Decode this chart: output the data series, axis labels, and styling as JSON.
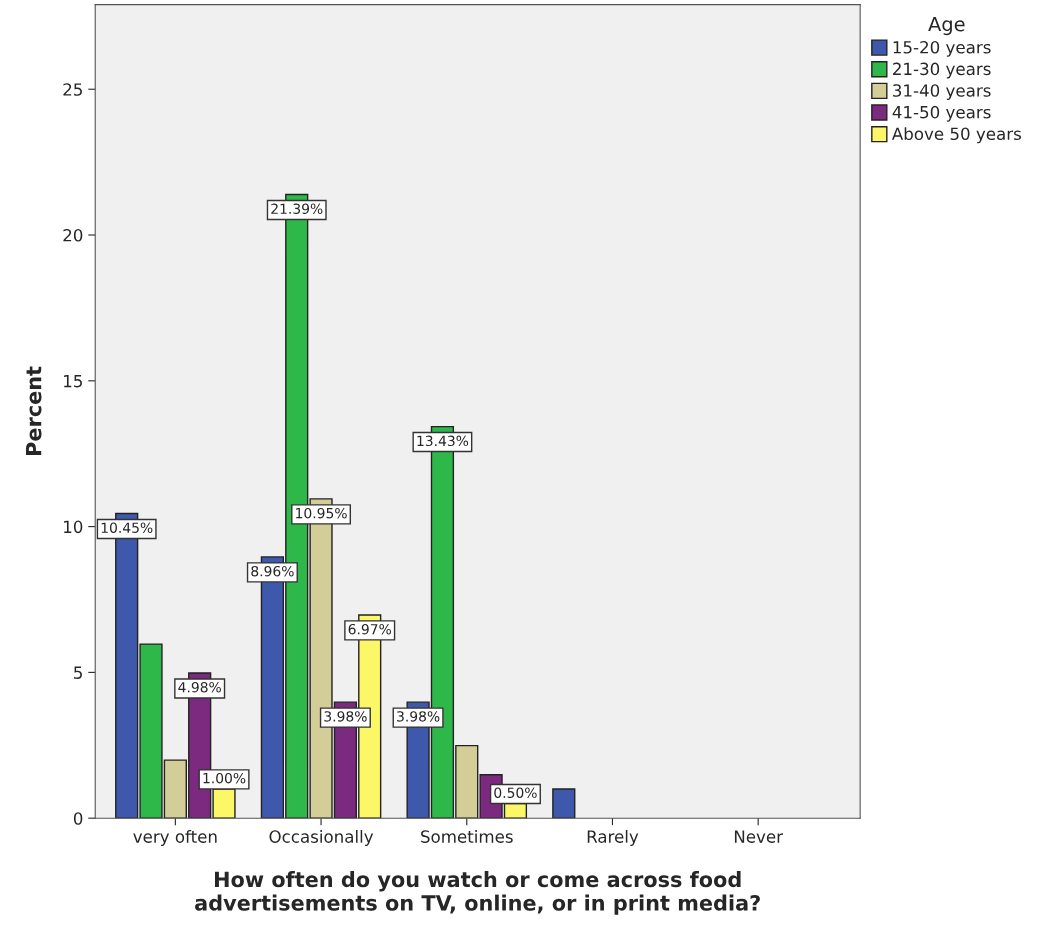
{
  "chart_data": {
    "type": "bar",
    "xlabel": "How often do you watch or come across food\nadvertisements on TV, online, or in print media?",
    "ylabel": "Percent",
    "legend_title": "Age",
    "categories": [
      "very often",
      "Occasionally",
      "Sometimes",
      "Rarely",
      "Never"
    ],
    "series": [
      {
        "name": "15-20 years",
        "color": "#3e58ac",
        "values": [
          10.45,
          8.96,
          3.98,
          1.0,
          null
        ],
        "value_labels": [
          "10.45%",
          "8.96%",
          "3.98%",
          null,
          null
        ]
      },
      {
        "name": "21-30 years",
        "color": "#2fb84a",
        "values": [
          5.97,
          21.39,
          13.43,
          null,
          null
        ],
        "value_labels": [
          null,
          "21.39%",
          "13.43%",
          null,
          null
        ]
      },
      {
        "name": "31-40 years",
        "color": "#d3ce97",
        "values": [
          1.99,
          10.95,
          2.49,
          null,
          null
        ],
        "value_labels": [
          null,
          "10.95%",
          null,
          null,
          null
        ]
      },
      {
        "name": "41-50 years",
        "color": "#7b2a7f",
        "values": [
          4.98,
          3.98,
          1.49,
          null,
          null
        ],
        "value_labels": [
          "4.98%",
          "3.98%",
          null,
          null,
          null
        ]
      },
      {
        "name": "Above 50 years",
        "color": "#fbf766",
        "values": [
          1.0,
          6.97,
          0.5,
          null,
          null
        ],
        "value_labels": [
          "1.00%",
          "6.97%",
          "0.50%",
          null,
          null
        ]
      }
    ],
    "ylim": [
      0,
      27.9
    ],
    "yticks": [
      0,
      5,
      10,
      15,
      20,
      25
    ],
    "grid": false,
    "legend": "top right"
  }
}
